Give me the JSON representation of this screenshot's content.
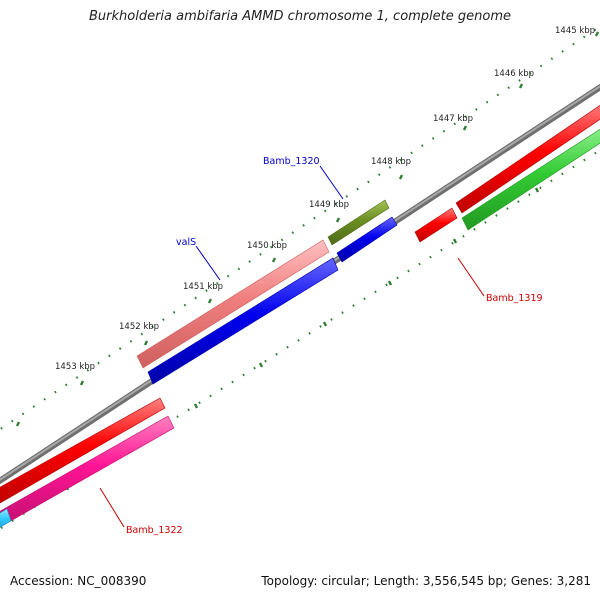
{
  "title": "Burkholderia ambifaria AMMD chromosome 1, complete genome",
  "footer": {
    "accession": "Accession: NC_008390",
    "summary": "Topology: circular; Length: 3,556,545 bp; Genes: 3,281"
  },
  "ruler": {
    "ticks": [
      "1445 kbp",
      "1446 kbp",
      "1447 kbp",
      "1448 kbp",
      "1449 kbp",
      "1450 kbp",
      "1451 kbp",
      "1452 kbp",
      "1453 kbp"
    ]
  },
  "genes": {
    "bamb_1320": "Bamb_1320",
    "vals": "valS",
    "bamb_1319": "Bamb_1319",
    "bamb_1322": "Bamb_1322"
  },
  "colors": {
    "backbone": "#8c8c8c",
    "red": "#ff0000",
    "green": "#33cc33",
    "olive": "#6b8e23",
    "salmon": "#f08080",
    "blue": "#0000ee",
    "pink": "#ff1493",
    "cyan": "#33ccff",
    "ruler": "#2e7d32",
    "label_blue": "#0000cc",
    "label_red": "#cc0000"
  }
}
